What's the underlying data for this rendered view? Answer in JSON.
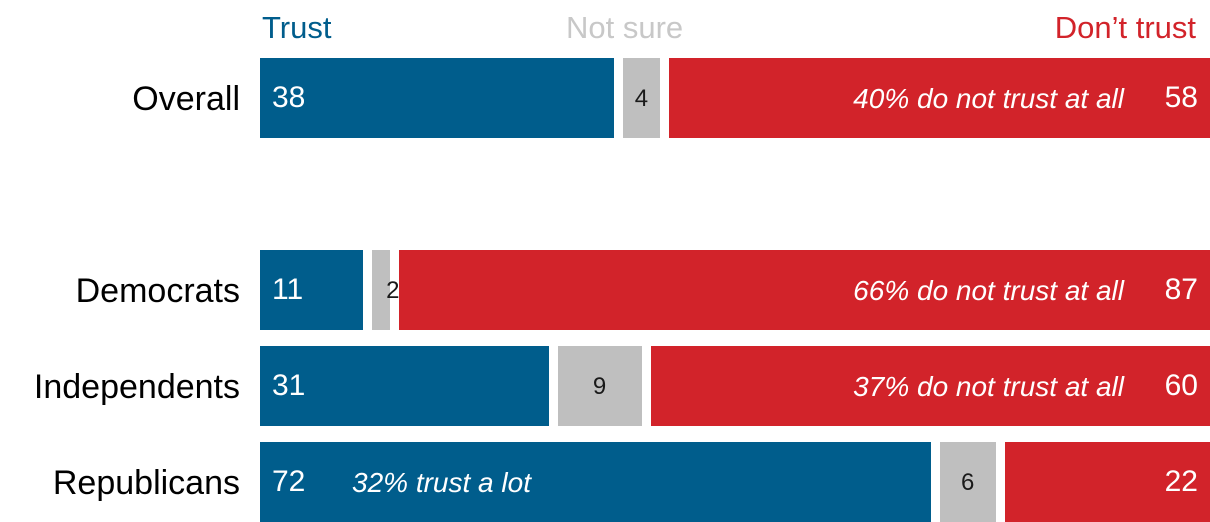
{
  "legend": {
    "trust": "Trust",
    "not_sure": "Not sure",
    "dont_trust": "Don’t trust"
  },
  "colors": {
    "trust": "#005d8c",
    "not_sure": "#bfbfbf",
    "dont_trust": "#d2232a",
    "not_sure_header": "#c8c8c8"
  },
  "chart_data": {
    "type": "bar",
    "orientation": "horizontal-stacked-100",
    "categories": [
      "Overall",
      "Democrats",
      "Independents",
      "Republicans"
    ],
    "series": [
      {
        "name": "Trust",
        "values": [
          38,
          11,
          31,
          72
        ]
      },
      {
        "name": "Not sure",
        "values": [
          4,
          2,
          9,
          6
        ]
      },
      {
        "name": "Don’t trust",
        "values": [
          58,
          87,
          60,
          22
        ]
      }
    ],
    "annotations": [
      {
        "category": "Overall",
        "series": "Don’t trust",
        "text": "40% do not trust at all"
      },
      {
        "category": "Democrats",
        "series": "Don’t trust",
        "text": "66% do not trust at all"
      },
      {
        "category": "Independents",
        "series": "Don’t trust",
        "text": "37% do not trust at all"
      },
      {
        "category": "Republicans",
        "series": "Trust",
        "text": "32% trust a lot"
      }
    ],
    "legend_position": "top"
  }
}
